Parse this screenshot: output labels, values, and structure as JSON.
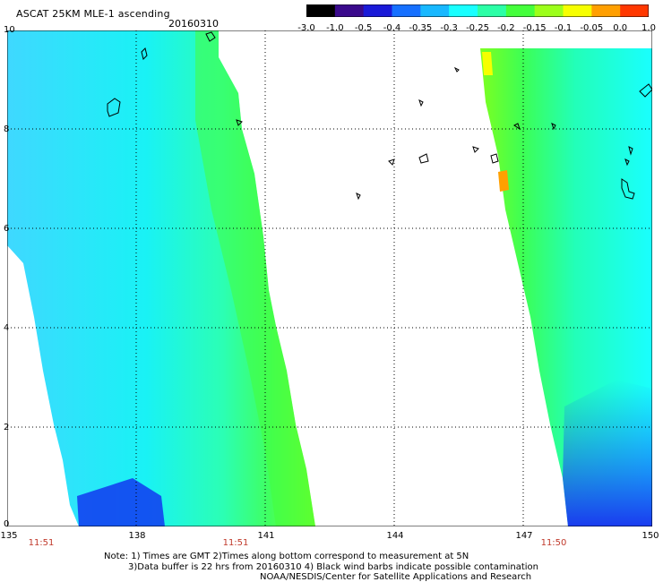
{
  "header": {
    "title": "ASCAT 25KM MLE-1 ascending",
    "date": "20160310"
  },
  "colorbar": {
    "labels": [
      "-3.0",
      "-1.0",
      "-0.5",
      "-0.4",
      "-0.35",
      "-0.3",
      "-0.25",
      "-0.2",
      "-0.15",
      "-0.1",
      "-0.05",
      "0.0",
      "1.0"
    ],
    "colors": [
      "#000000",
      "#3a0a8c",
      "#1a1ad8",
      "#1670ff",
      "#18b8ff",
      "#19ffff",
      "#2bffa6",
      "#44ff3c",
      "#9cff1a",
      "#f6ff00",
      "#ff9f00",
      "#ff3800"
    ]
  },
  "axes": {
    "y_labels": [
      "10",
      "8",
      "6",
      "4",
      "2",
      "0"
    ],
    "x_labels": [
      "135",
      "138",
      "141",
      "144",
      "147",
      "150"
    ],
    "time_labels": [
      "11:51",
      "11:51",
      "11:50"
    ]
  },
  "footer": {
    "line1": "Note: 1) Times are GMT 2)Times along bottom correspond to measurement at 5N",
    "line2": "3)Data buffer is 22 hrs from 20160310 4) Black wind barbs indicate possible contamination",
    "line3": "NOAA/NESDIS/Center for Satellite Applications and Research"
  }
}
